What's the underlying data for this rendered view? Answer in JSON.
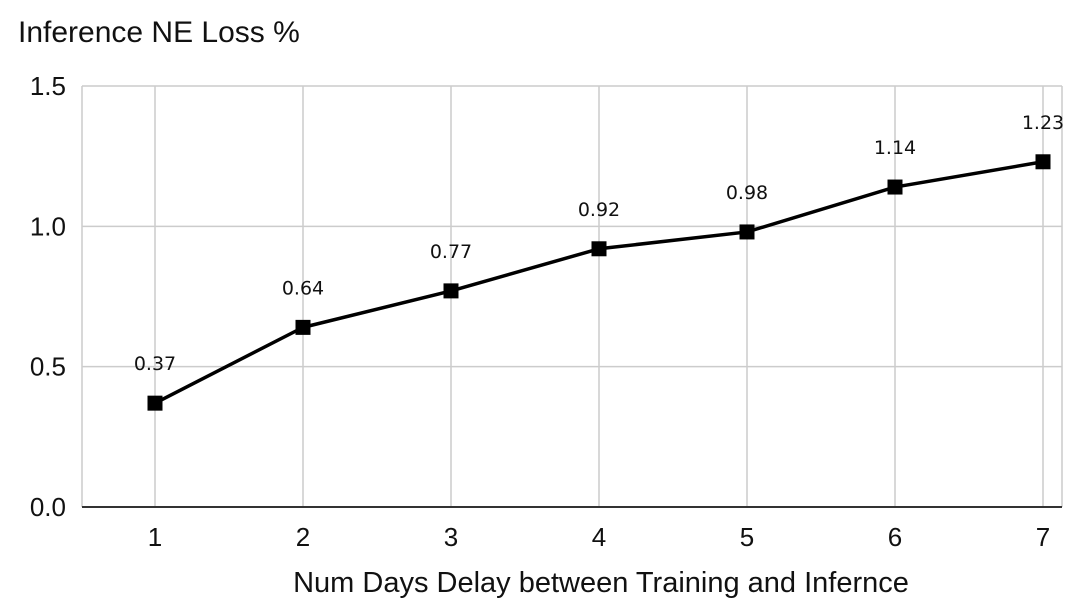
{
  "chart_data": {
    "type": "line",
    "title": "",
    "ylabel": "Inference NE Loss %",
    "xlabel": "Num Days Delay between Training and Infernce",
    "x": [
      1,
      2,
      3,
      4,
      5,
      6,
      7
    ],
    "x_tick_labels": [
      "1",
      "2",
      "3",
      "4",
      "5",
      "6",
      "7"
    ],
    "ylim": [
      0,
      1.5
    ],
    "y_ticks": [
      0,
      0.5,
      1.0,
      1.5
    ],
    "y_tick_labels": [
      "0.0",
      "0.5",
      "1.0",
      "1.5"
    ],
    "grid": true,
    "marker": "square",
    "series": [
      {
        "values": [
          0.37,
          0.64,
          0.77,
          0.92,
          0.98,
          1.14,
          1.23
        ],
        "data_labels": [
          "0.37",
          "0.64",
          "0.77",
          "0.92",
          "0.98",
          "1.14",
          "1.23"
        ]
      }
    ],
    "colors": {
      "line": "#000000",
      "marker": "#000000",
      "grid": "#cccccc",
      "axis": "#333333"
    }
  }
}
